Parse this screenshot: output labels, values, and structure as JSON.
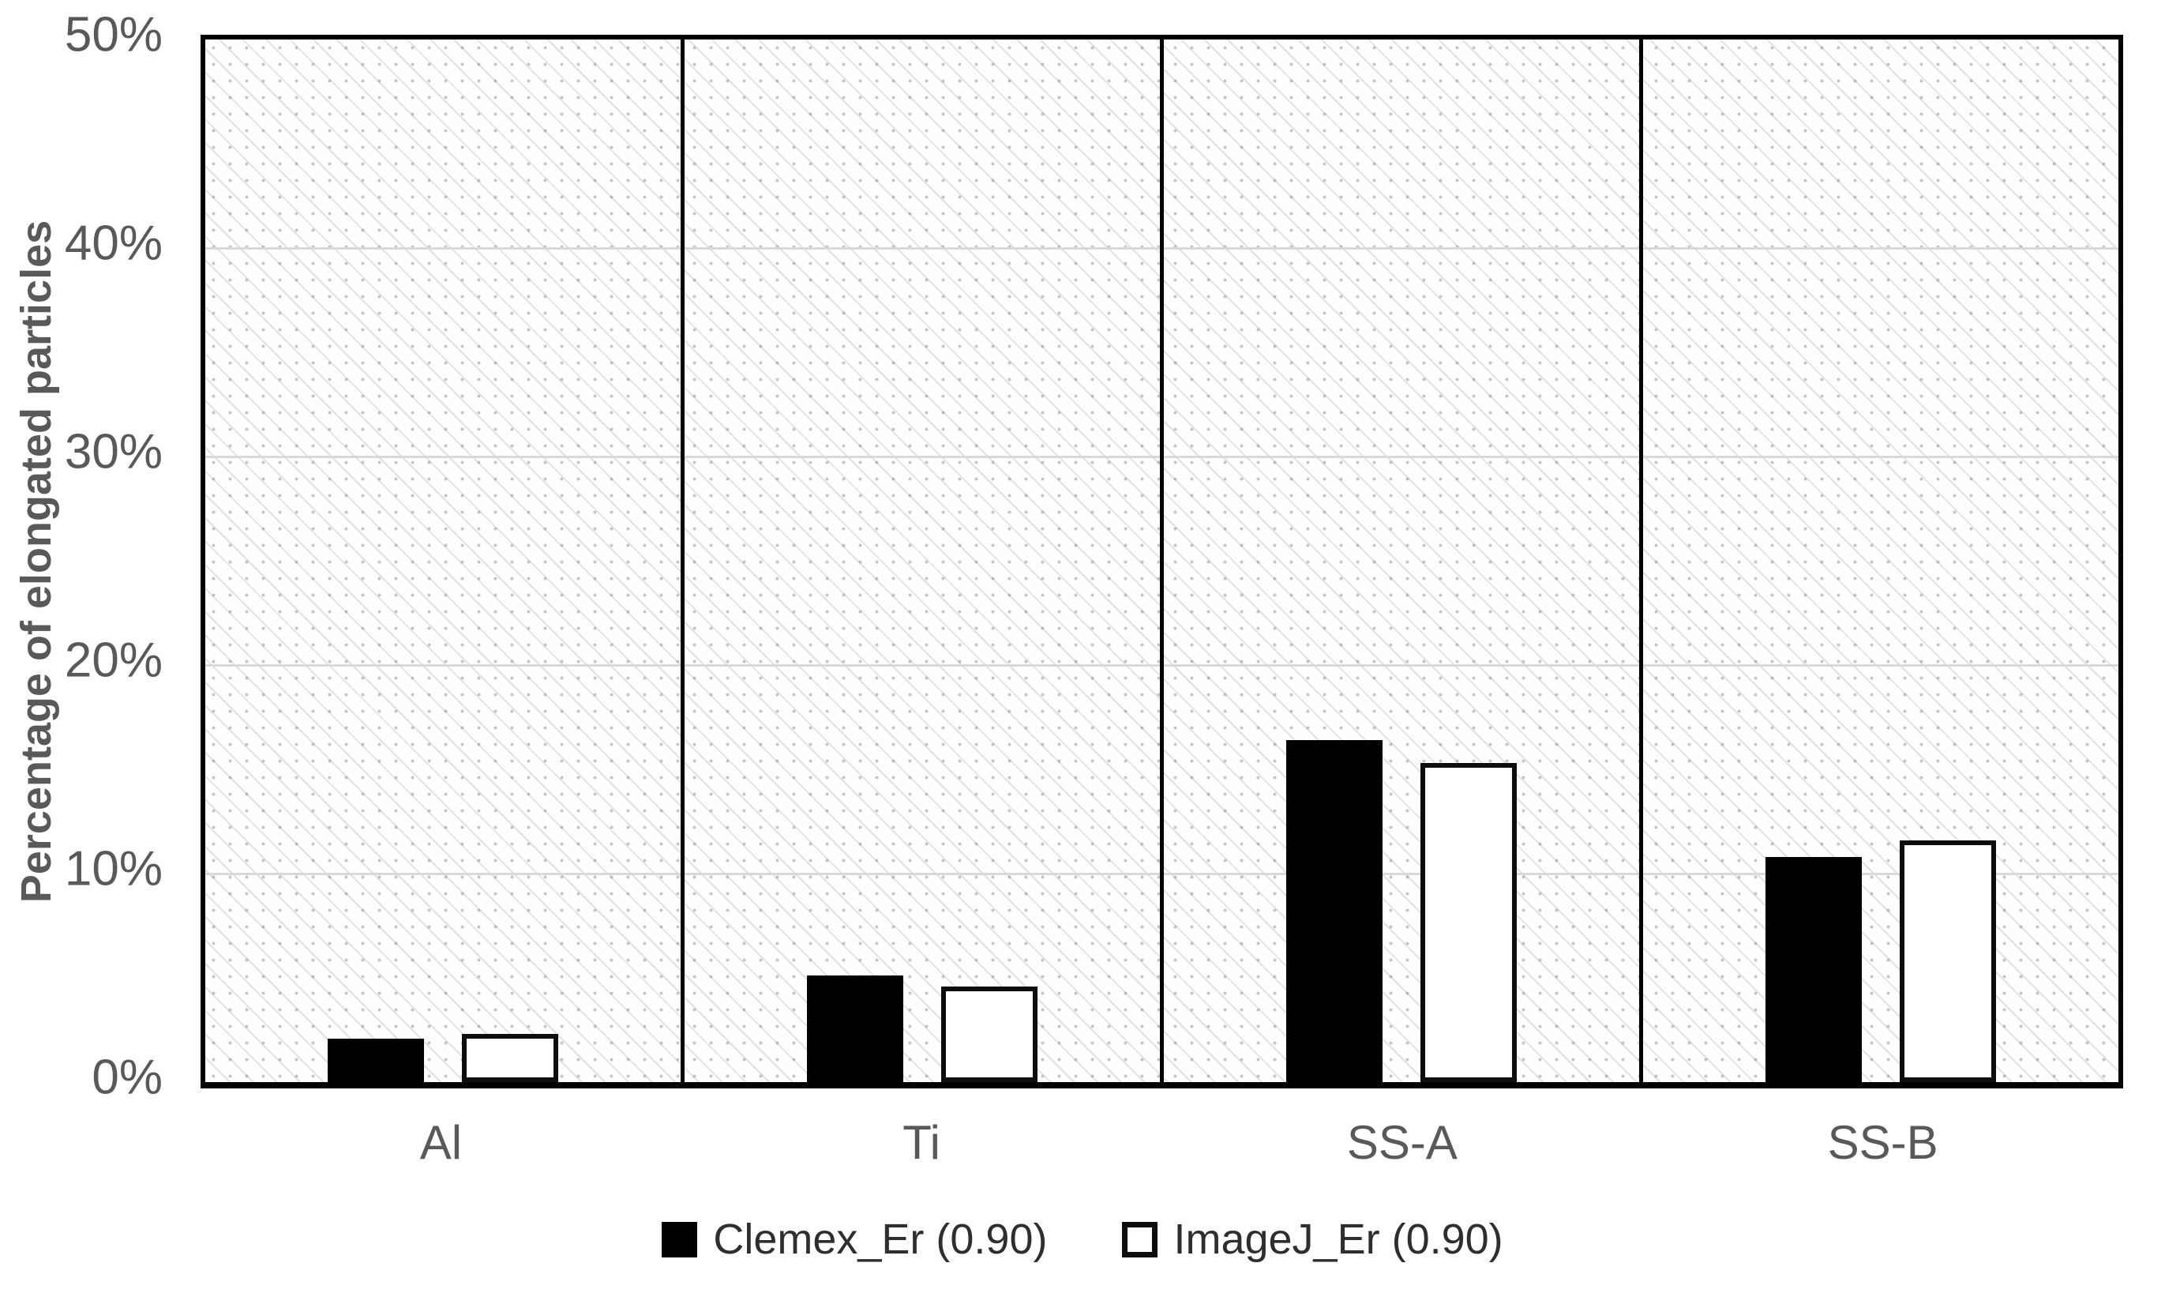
{
  "chart_data": {
    "type": "bar",
    "title": "",
    "xlabel": "",
    "ylabel": "Percentage of elongated particles",
    "categories": [
      "Al",
      "Ti",
      "SS-A",
      "SS-B"
    ],
    "series": [
      {
        "name": "Clemex_Er (0.90)",
        "color": "#000000",
        "values": [
          2.1,
          5.1,
          16.4,
          10.8
        ]
      },
      {
        "name": "ImageJ_Er (0.90)",
        "color": "#ffffff",
        "values": [
          2.3,
          4.6,
          15.3,
          11.6
        ]
      }
    ],
    "ylim": [
      0,
      50
    ],
    "yticks": [
      "0%",
      "10%",
      "20%",
      "30%",
      "40%",
      "50%"
    ],
    "grid": "horizontal-major",
    "panel_dividers": true,
    "legend_position": "bottom",
    "plot_background": "light-diagonal-dotted-hatch",
    "colors": {
      "axis_text": "#595959",
      "gridline": "#d9d9d9",
      "border": "#000000",
      "legend_text": "#2e2e2e"
    }
  }
}
